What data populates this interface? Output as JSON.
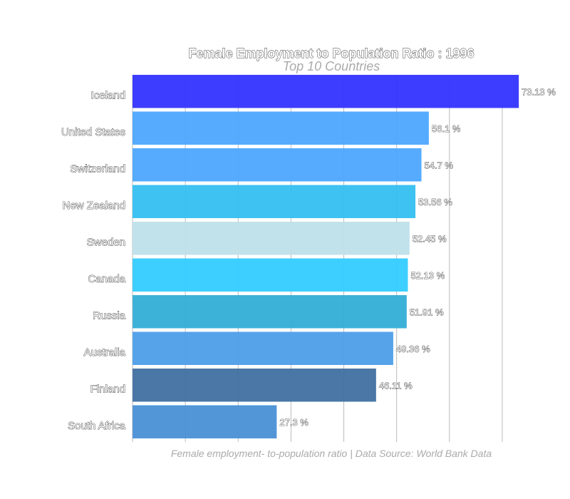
{
  "chart_data": {
    "type": "bar",
    "orientation": "horizontal",
    "title": "Female Employment to Population Ratio : 1996",
    "subtitle": "Top 10 Countries",
    "caption": "Female employment- to-population ratio | Data Source: World Bank Data",
    "categories": [
      "Iceland",
      "United States",
      "Switzerland",
      "New Zealand",
      "Sweden",
      "Canada",
      "Russia",
      "Australia",
      "Finland",
      "South Africa"
    ],
    "values": [
      73.13,
      56.1,
      54.7,
      53.56,
      52.45,
      52.13,
      51.91,
      49.36,
      46.11,
      27.3
    ],
    "value_labels": [
      "73.13 %",
      "56.1 %",
      "54.7 %",
      "53.56 %",
      "52.45 %",
      "52.13 %",
      "51.91 %",
      "49.36 %",
      "46.11 %",
      "27.3 %"
    ],
    "colors": [
      "#3333ff",
      "#4da6ff",
      "#4da6ff",
      "#33bff0",
      "#bfe0ea",
      "#33ccff",
      "#33aed6",
      "#4d9ee8",
      "#4070a0",
      "#4a90d6"
    ],
    "xlim": [
      0,
      75
    ],
    "grid": true,
    "legend": "none"
  }
}
